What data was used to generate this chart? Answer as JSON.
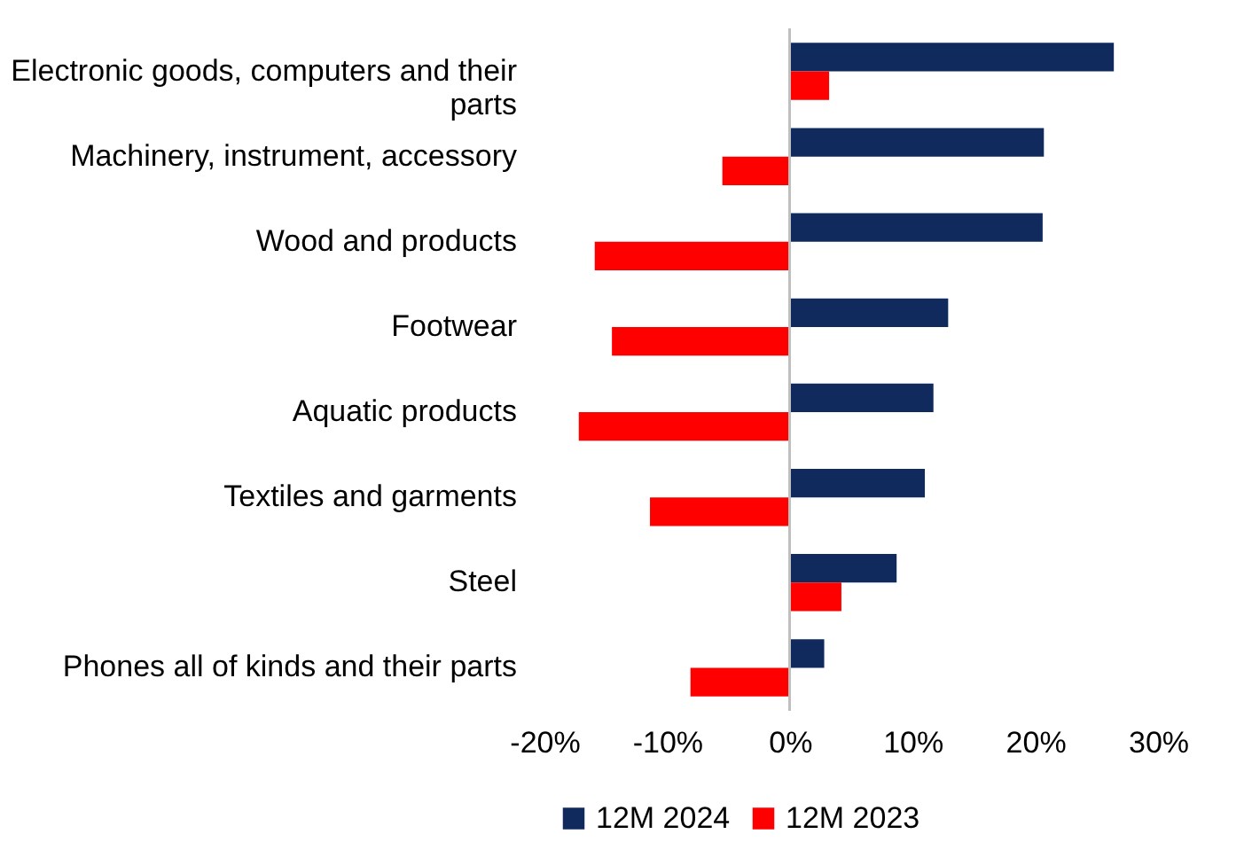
{
  "chart_data": {
    "type": "bar",
    "orientation": "horizontal",
    "categories": [
      "Electronic goods, computers and their parts",
      "Machinery, instrument, accessory",
      "Wood and products",
      "Footwear",
      "Aquatic products",
      "Textiles and garments",
      "Steel",
      "Phones all of kinds and their parts"
    ],
    "series": [
      {
        "name": "12M 2024",
        "color": "#112a5e",
        "values": [
          26.4,
          20.7,
          20.6,
          12.9,
          11.7,
          11.0,
          8.7,
          2.8
        ]
      },
      {
        "name": "12M 2023",
        "color": "#ff0000",
        "values": [
          3.2,
          -5.5,
          -15.9,
          -14.5,
          -17.2,
          -11.4,
          4.2,
          -8.1
        ]
      }
    ],
    "xlim": [
      -20,
      30
    ],
    "xticks": [
      {
        "value": -20,
        "label": "-20%"
      },
      {
        "value": -10,
        "label": "-10%"
      },
      {
        "value": 0,
        "label": "0%"
      },
      {
        "value": 10,
        "label": "10%"
      },
      {
        "value": 20,
        "label": "20%"
      },
      {
        "value": 30,
        "label": "30%"
      }
    ],
    "ref_lines": [
      {
        "axis": "x",
        "value": 0,
        "color": "#bfbfbf"
      }
    ],
    "grid": false,
    "legend": "bottom"
  }
}
